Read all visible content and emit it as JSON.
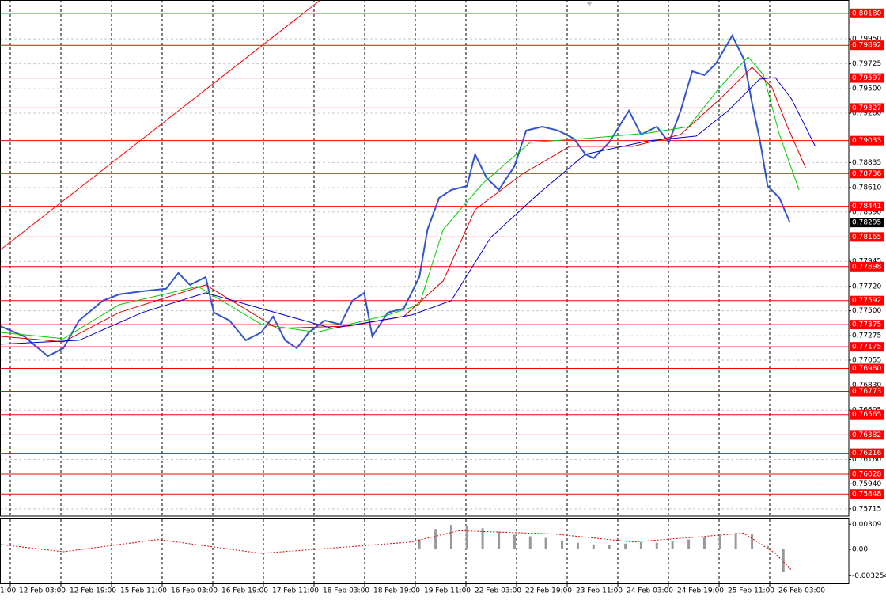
{
  "chart_data": {
    "type": "line",
    "categories": [
      "1:00",
      "12 Feb 03:00",
      "12 Feb 19:00",
      "15 Feb 11:00",
      "16 Feb 03:00",
      "16 Feb 19:00",
      "17 Feb 11:00",
      "18 Feb 03:00",
      "18 Feb 19:00",
      "19 Feb 11:00",
      "22 Feb 03:00",
      "22 Feb 19:00",
      "23 Feb 11:00",
      "24 Feb 03:00",
      "24 Feb 19:00",
      "25 Feb 11:00",
      "26 Feb 03:00"
    ],
    "xlim": [
      0.797,
      17.5625
    ],
    "ylim": [
      0.7565,
      0.803
    ],
    "yticks": [
      {
        "value": 0.7995,
        "label": "0.79950"
      },
      0.79725,
      {
        "value": 0.795,
        "label": "0.79500"
      },
      {
        "value": 0.7928,
        "label": "0.79280"
      },
      0.78835,
      {
        "value": 0.7861,
        "label": "0.78610"
      },
      {
        "value": 0.7839,
        "label": "0.78390"
      },
      0.77945,
      {
        "value": 0.7772,
        "label": "0.77720"
      },
      {
        "value": 0.775,
        "label": "0.77500"
      },
      0.77275,
      0.77055,
      {
        "value": 0.7683,
        "label": "0.76830"
      },
      0.76605,
      {
        "value": 0.7616,
        "label": "0.76160"
      },
      {
        "value": 0.7594,
        "label": "0.75940"
      },
      0.75715
    ],
    "grid": true,
    "series": [
      {
        "color": "#3355cc",
        "x": [
          0.8,
          1.27,
          1.74,
          2.05,
          2.36,
          2.83,
          3.15,
          3.61,
          4.08,
          4.32,
          4.55,
          4.86,
          5.02,
          5.33,
          5.65,
          5.96,
          6.19,
          6.43,
          6.66,
          6.9,
          7.21,
          7.52,
          7.76,
          7.99,
          8.15,
          8.46,
          8.77,
          9.08,
          9.24,
          9.47,
          9.71,
          10.02,
          10.18,
          10.41,
          10.65,
          10.96,
          11.19,
          11.51,
          11.82,
          12.13,
          12.36,
          12.52,
          12.83,
          13.22,
          13.46,
          13.77,
          14.01,
          14.24,
          14.47,
          14.71,
          14.94,
          15.26,
          15.49,
          15.65,
          15.8,
          15.96,
          16.19,
          16.4
        ],
        "values": [
          0.77362,
          0.7727,
          0.77091,
          0.77163,
          0.77412,
          0.77591,
          0.77648,
          0.77676,
          0.77698,
          0.7784,
          0.77733,
          0.77804,
          0.77484,
          0.77412,
          0.77234,
          0.77305,
          0.77448,
          0.77234,
          0.77163,
          0.77305,
          0.77412,
          0.77377,
          0.77591,
          0.77662,
          0.7727,
          0.77484,
          0.77519,
          0.77804,
          0.78232,
          0.78517,
          0.78589,
          0.78624,
          0.7891,
          0.78696,
          0.78589,
          0.78803,
          0.79124,
          0.79159,
          0.79124,
          0.79052,
          0.7891,
          0.78874,
          0.79017,
          0.79302,
          0.79088,
          0.79159,
          0.79017,
          0.79302,
          0.79658,
          0.79623,
          0.7973,
          0.79979,
          0.79765,
          0.79373,
          0.79052,
          0.78624,
          0.78517,
          0.78295
        ]
      },
      {
        "color": "#00cc00",
        "x": [
          0.8,
          2.05,
          3.15,
          4.71,
          5.96,
          7.05,
          8.46,
          9.08,
          9.55,
          10.33,
          11.27,
          12.36,
          13.61,
          14.4,
          15.02,
          15.57,
          15.88,
          16.19,
          16.58
        ],
        "values": [
          0.77305,
          0.77248,
          0.77555,
          0.77719,
          0.77377,
          0.77305,
          0.77462,
          0.77555,
          0.78232,
          0.78646,
          0.79017,
          0.79052,
          0.79102,
          0.79159,
          0.79516,
          0.79787,
          0.79623,
          0.79088,
          0.78589
        ]
      },
      {
        "color": "#dd0000",
        "x": [
          0.8,
          2.05,
          3.15,
          4.86,
          6.27,
          7.68,
          8.77,
          9.55,
          10.18,
          11.11,
          12.05,
          13.3,
          14.24,
          15.02,
          15.65,
          16.04,
          16.35,
          16.71
        ],
        "values": [
          0.7727,
          0.7722,
          0.77484,
          0.77733,
          0.77341,
          0.77362,
          0.77448,
          0.77769,
          0.78411,
          0.78731,
          0.78981,
          0.78981,
          0.79088,
          0.79409,
          0.79694,
          0.79516,
          0.79159,
          0.78788
        ]
      },
      {
        "color": "#0000cc",
        "x": [
          0.8,
          2.36,
          3.61,
          4.86,
          5.96,
          7.36,
          8.93,
          9.71,
          10.49,
          11.43,
          12.36,
          13.61,
          14.55,
          15.18,
          15.8,
          16.11,
          16.43,
          16.9
        ],
        "values": [
          0.77198,
          0.77234,
          0.77484,
          0.77662,
          0.77519,
          0.77341,
          0.77462,
          0.77591,
          0.78161,
          0.78553,
          0.7891,
          0.79031,
          0.79074,
          0.79302,
          0.79587,
          0.79601,
          0.79409,
          0.78981
        ]
      }
    ],
    "levels_color": "#ff0000",
    "levels": [
      {
        "value": 0.8018,
        "label": "0.80180"
      },
      0.79892,
      0.79597,
      0.79327,
      0.79033,
      0.78736,
      0.78441,
      0.78165,
      0.77898,
      0.77592,
      0.77375,
      0.77175,
      {
        "value": 0.7698,
        "label": "0.76980"
      },
      0.76773,
      0.76565,
      0.76382,
      0.76216,
      0.76028,
      0.75848
    ],
    "last_price": 0.78295,
    "indicator": {
      "y2lim": [
        -0.0043,
        0.0037
      ],
      "y2ticks": [
        0.00309,
        {
          "value": 0,
          "label": "0.00"
        },
        -0.003254
      ],
      "histogram_color": "#999999",
      "histogram_x": [
        9.08,
        9.4,
        9.71,
        10.02,
        10.33,
        10.65,
        10.96,
        11.27,
        11.58,
        11.9,
        12.21,
        12.52,
        12.83,
        13.15,
        13.46,
        13.77,
        14.08,
        14.4,
        14.71,
        15.02,
        15.33,
        15.65,
        15.96,
        16.27
      ],
      "histogram": [
        0.0012,
        0.0025,
        0.003,
        0.0029,
        0.0026,
        0.0022,
        0.0018,
        0.0016,
        0.0014,
        0.0011,
        0.0008,
        0.0006,
        0.0005,
        0.0007,
        0.0009,
        0.0008,
        0.001,
        0.0012,
        0.0015,
        0.0017,
        0.002,
        0.0019,
        0.0004,
        -0.0028
      ],
      "signal_color": "#dd0000",
      "signal_x": [
        0.8,
        2.05,
        3.92,
        5.95,
        7.67,
        8.92,
        9.86,
        11.73,
        13.3,
        14.55,
        15.48,
        16.11,
        16.42
      ],
      "signal": [
        0.0006,
        -0.0003,
        0.0012,
        -0.0005,
        0.0003,
        0.0009,
        0.0023,
        0.0019,
        0.0009,
        0.0015,
        0.002,
        -0.0005,
        -0.0025
      ]
    }
  }
}
